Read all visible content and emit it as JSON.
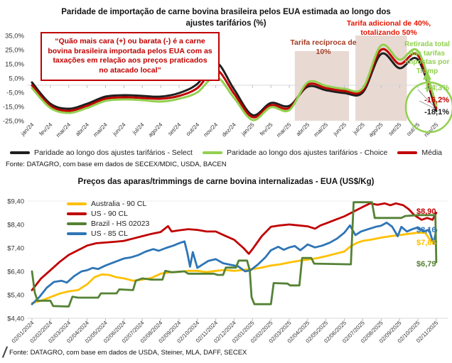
{
  "chart_data": [
    {
      "type": "line",
      "title": "Paridade de importação de carne bovina brasileira pelos EUA estimada ao longo dos ajustes tarifários (%)",
      "categories": [
        "jan/24",
        "fev/24",
        "mar/24",
        "abr/24",
        "mai/24",
        "jun/24",
        "jul/24",
        "ago/24",
        "set/24",
        "out/24",
        "nov/24",
        "dez/24",
        "jan/25",
        "fev/25",
        "mar/25",
        "abr/25",
        "mai/25",
        "jun/25",
        "jul/25",
        "ago/25",
        "set/25",
        "out/25",
        "nov/25"
      ],
      "ylim": [
        -25,
        35
      ],
      "ytick_labels": [
        "35,0%",
        "25,0%",
        "15,0%",
        "5,0%",
        "-5,0%",
        "-15,0%",
        "-25,0%"
      ],
      "grid": "zero-axis-only",
      "smooth": true,
      "legend_position": "bottom",
      "series": [
        {
          "name": "Paridade ao longo dos ajustes tarifários - Select",
          "color": "#1f1f1f",
          "values": [
            2,
            -13,
            -16.5,
            -13,
            -8,
            -7,
            -7.5,
            -8,
            -5.5,
            1,
            16,
            -3,
            -21,
            -12.5,
            -14.5,
            -1,
            -3.5,
            -5.5,
            -5,
            22,
            12,
            18,
            -18.1
          ]
        },
        {
          "name": "Paridade ao longo dos ajustes tarifários - Choice",
          "color": "#92d050",
          "values": [
            -2,
            -16,
            -19.5,
            -16,
            -11,
            -10,
            -10.5,
            -11.5,
            -9.5,
            -5,
            6,
            -9,
            -24.5,
            -15.5,
            -17.5,
            2,
            -0.5,
            -2.5,
            -2,
            28,
            18,
            24,
            -14.3
          ]
        },
        {
          "name": "Média",
          "color": "#c00000",
          "values": [
            0,
            -14.5,
            -18,
            -14.5,
            -9.5,
            -8.5,
            -9,
            -9.5,
            -7.5,
            -2,
            11,
            -6,
            -22.5,
            -14,
            -16,
            0.5,
            -2,
            -4,
            -3.5,
            25,
            15,
            21,
            -16.2
          ]
        }
      ],
      "regions": [
        {
          "label": "Tarifa recíproca de 10%",
          "from": 14.3,
          "to": 17.25,
          "top": 24,
          "color": "#e9d9d3"
        },
        {
          "label": "Tarifa adicional de 40%, totalizando 50%",
          "from": 17.6,
          "to": 20.4,
          "top": 35,
          "color": "#e9d9d3"
        }
      ],
      "annotations": {
        "quote": "“Quão mais cara (+) ou barata (-) é a carne bovina brasileira importada pelos EUA com as taxações em relação aos preços praticados no atacado local”",
        "reciproca": "Tarifa recíproca de 10%",
        "adicional": "Tarifa adicional de 40%, totalizando 50%",
        "retirada": "Retirada total das tarifas impostas por Trump"
      },
      "end_labels": [
        {
          "text": "-14,3%",
          "color": "#92d050"
        },
        {
          "text": "-16,2%",
          "color": "#c00000"
        },
        {
          "text": "-18,1%",
          "color": "#1f1f1f"
        }
      ],
      "source": "Fonte: DATAGRO, com base em dados de SECEX/MDIC, USDA, BACEN"
    },
    {
      "type": "line",
      "title": "Preços das aparas/trimmings de carne bovina internalizadas - EUA (US$/Kg)",
      "categories": [
        "02/01/2024",
        "02/02/2024",
        "02/03/2024",
        "02/04/2024",
        "02/05/2024",
        "02/06/2024",
        "02/07/2024",
        "02/08/2024",
        "02/09/2024",
        "02/10/2024",
        "02/11/2024",
        "02/12/2024",
        "02/01/2025",
        "02/02/2025",
        "02/03/2025",
        "02/04/2025",
        "02/05/2025",
        "02/06/2025",
        "02/07/2025",
        "02/08/2025",
        "02/09/2025",
        "02/10/2025",
        "02/11/2025"
      ],
      "ylim": [
        4.4,
        9.4
      ],
      "ytick_labels": [
        "$9,40",
        "$8,40",
        "$7,40",
        "$6,40",
        "$5,40",
        "$4,40"
      ],
      "grid": "top-gridline",
      "smooth": false,
      "legend_position": "top-left",
      "series": [
        {
          "name": "Australia - 90 CL",
          "color": "#ffc000",
          "points": [
            [
              0,
              5.05
            ],
            [
              0.5,
              5.15
            ],
            [
              1,
              5.3
            ],
            [
              1.5,
              5.45
            ],
            [
              2,
              5.55
            ],
            [
              2.5,
              5.6
            ],
            [
              3,
              5.85
            ],
            [
              3.4,
              6.15
            ],
            [
              3.8,
              6.27
            ],
            [
              4.2,
              6.25
            ],
            [
              4.6,
              6.15
            ],
            [
              5,
              6.1
            ],
            [
              5.5,
              6.0
            ],
            [
              6,
              6.05
            ],
            [
              6.5,
              6.12
            ],
            [
              7,
              6.3
            ],
            [
              7.5,
              6.36
            ],
            [
              8,
              6.38
            ],
            [
              8.5,
              6.42
            ],
            [
              9,
              6.42
            ],
            [
              9.5,
              6.37
            ],
            [
              10,
              6.42
            ],
            [
              10.5,
              6.46
            ],
            [
              11,
              6.42
            ],
            [
              11.5,
              6.46
            ],
            [
              12,
              6.5
            ],
            [
              12.5,
              6.56
            ],
            [
              13,
              6.65
            ],
            [
              13.5,
              6.7
            ],
            [
              14,
              6.78
            ],
            [
              14.5,
              6.85
            ],
            [
              15,
              6.9
            ],
            [
              15.5,
              6.96
            ],
            [
              16,
              7.05
            ],
            [
              16.5,
              7.15
            ],
            [
              17,
              7.25
            ],
            [
              17.3,
              7.45
            ],
            [
              17.7,
              7.62
            ],
            [
              18,
              7.7
            ],
            [
              18.5,
              7.76
            ],
            [
              19,
              7.84
            ],
            [
              19.5,
              7.9
            ],
            [
              20,
              7.95
            ],
            [
              20.5,
              8.0
            ],
            [
              21,
              8.05
            ],
            [
              21.4,
              8.04
            ],
            [
              21.7,
              7.7
            ],
            [
              22,
              7.66
            ]
          ]
        },
        {
          "name": "US - 90 CL",
          "color": "#c00000",
          "points": [
            [
              0,
              5.6
            ],
            [
              0.5,
              6.1
            ],
            [
              1,
              6.45
            ],
            [
              1.5,
              6.8
            ],
            [
              2,
              7.1
            ],
            [
              2.5,
              7.3
            ],
            [
              3,
              7.5
            ],
            [
              3.5,
              7.6
            ],
            [
              4,
              7.63
            ],
            [
              4.5,
              7.66
            ],
            [
              5,
              7.7
            ],
            [
              5.5,
              7.8
            ],
            [
              6,
              7.9
            ],
            [
              6.5,
              8.0
            ],
            [
              7,
              8.08
            ],
            [
              7.4,
              8.33
            ],
            [
              7.6,
              8.1
            ],
            [
              8,
              8.15
            ],
            [
              8.5,
              8.2
            ],
            [
              9,
              8.17
            ],
            [
              9.5,
              8.1
            ],
            [
              10,
              8.1
            ],
            [
              10.5,
              7.92
            ],
            [
              11,
              7.75
            ],
            [
              11.5,
              7.4
            ],
            [
              11.8,
              7.15
            ],
            [
              12,
              7.35
            ],
            [
              12.5,
              7.9
            ],
            [
              13,
              8.3
            ],
            [
              13.5,
              8.36
            ],
            [
              14,
              8.4
            ],
            [
              14.5,
              8.36
            ],
            [
              15,
              8.32
            ],
            [
              15.4,
              8.22
            ],
            [
              15.7,
              8.36
            ],
            [
              16,
              8.45
            ],
            [
              16.5,
              8.6
            ],
            [
              17,
              8.75
            ],
            [
              17.5,
              8.95
            ],
            [
              18,
              9.15
            ],
            [
              18.4,
              9.3
            ],
            [
              18.8,
              9.24
            ],
            [
              19.2,
              9.3
            ],
            [
              19.5,
              9.22
            ],
            [
              19.8,
              9.3
            ],
            [
              20.2,
              9.22
            ],
            [
              20.5,
              9.05
            ],
            [
              20.8,
              8.8
            ],
            [
              21.2,
              8.6
            ],
            [
              21.5,
              8.68
            ],
            [
              21.8,
              8.6
            ],
            [
              22,
              8.9
            ]
          ]
        },
        {
          "name": "Brazil - HS 02023",
          "color": "#548235",
          "points": [
            [
              0,
              6.4
            ],
            [
              0.15,
              5.5
            ],
            [
              0.3,
              5.15
            ],
            [
              1,
              5.15
            ],
            [
              1.15,
              4.92
            ],
            [
              2,
              4.9
            ],
            [
              2.2,
              5.32
            ],
            [
              2.5,
              5.28
            ],
            [
              3.6,
              5.28
            ],
            [
              3.75,
              5.46
            ],
            [
              4.6,
              5.46
            ],
            [
              4.75,
              5.63
            ],
            [
              5.5,
              5.6
            ],
            [
              5.65,
              6.0
            ],
            [
              6,
              6.1
            ],
            [
              6.5,
              6.05
            ],
            [
              7.1,
              6.05
            ],
            [
              7.25,
              6.42
            ],
            [
              7.6,
              6.36
            ],
            [
              8.3,
              6.4
            ],
            [
              8.5,
              6.3
            ],
            [
              9.9,
              6.3
            ],
            [
              10.1,
              6.25
            ],
            [
              10.4,
              6.25
            ],
            [
              10.55,
              6.56
            ],
            [
              11.1,
              6.56
            ],
            [
              11.25,
              6.86
            ],
            [
              11.7,
              6.86
            ],
            [
              11.85,
              6.45
            ],
            [
              11.95,
              5.3
            ],
            [
              12.1,
              5.0
            ],
            [
              13,
              5.0
            ],
            [
              13.15,
              5.9
            ],
            [
              13.9,
              5.88
            ],
            [
              14.05,
              5.8
            ],
            [
              14.55,
              5.8
            ],
            [
              14.7,
              6.97
            ],
            [
              15.2,
              6.97
            ],
            [
              15.35,
              6.73
            ],
            [
              17.35,
              6.7
            ],
            [
              17.5,
              9.35
            ],
            [
              18.5,
              9.35
            ],
            [
              18.65,
              8.68
            ],
            [
              20.1,
              8.68
            ],
            [
              20.3,
              8.76
            ],
            [
              21,
              8.8
            ],
            [
              21.95,
              8.8
            ],
            [
              22,
              6.79
            ]
          ]
        },
        {
          "name": "US - 85 CL",
          "color": "#2e75b6",
          "points": [
            [
              0,
              5.0
            ],
            [
              0.4,
              5.3
            ],
            [
              0.8,
              5.7
            ],
            [
              1.2,
              5.95
            ],
            [
              1.6,
              6.0
            ],
            [
              1.9,
              5.92
            ],
            [
              2.3,
              6.2
            ],
            [
              2.7,
              6.4
            ],
            [
              3,
              6.45
            ],
            [
              3.3,
              6.55
            ],
            [
              3.6,
              6.5
            ],
            [
              4,
              6.65
            ],
            [
              4.5,
              6.8
            ],
            [
              5,
              6.95
            ],
            [
              5.4,
              7.0
            ],
            [
              5.8,
              7.1
            ],
            [
              6.2,
              7.25
            ],
            [
              6.6,
              7.35
            ],
            [
              6.9,
              7.28
            ],
            [
              7.3,
              7.4
            ],
            [
              7.7,
              7.5
            ],
            [
              8,
              7.6
            ],
            [
              8.3,
              7.68
            ],
            [
              8.45,
              7.2
            ],
            [
              8.6,
              6.6
            ],
            [
              8.75,
              7.22
            ],
            [
              9,
              6.55
            ],
            [
              9.3,
              6.7
            ],
            [
              9.6,
              6.85
            ],
            [
              10,
              6.92
            ],
            [
              10.4,
              6.75
            ],
            [
              10.8,
              6.68
            ],
            [
              11.2,
              6.62
            ],
            [
              11.6,
              6.4
            ],
            [
              11.9,
              6.45
            ],
            [
              12.3,
              6.7
            ],
            [
              12.7,
              7.0
            ],
            [
              13,
              7.3
            ],
            [
              13.4,
              7.45
            ],
            [
              13.7,
              7.32
            ],
            [
              14,
              7.42
            ],
            [
              14.3,
              7.48
            ],
            [
              14.6,
              7.3
            ],
            [
              15,
              7.55
            ],
            [
              15.4,
              7.42
            ],
            [
              15.8,
              7.5
            ],
            [
              16.2,
              7.62
            ],
            [
              16.6,
              7.8
            ],
            [
              17,
              8.05
            ],
            [
              17.3,
              8.36
            ],
            [
              17.6,
              7.95
            ],
            [
              17.9,
              8.1
            ],
            [
              18.3,
              8.2
            ],
            [
              18.7,
              8.3
            ],
            [
              19,
              8.35
            ],
            [
              19.3,
              8.48
            ],
            [
              19.6,
              8.3
            ],
            [
              19.9,
              7.9
            ],
            [
              20.1,
              8.3
            ],
            [
              20.4,
              8.1
            ],
            [
              20.7,
              8.2
            ],
            [
              21,
              8.28
            ],
            [
              21.3,
              8.1
            ],
            [
              21.6,
              8.18
            ],
            [
              21.85,
              7.6
            ],
            [
              22,
              8.16
            ]
          ]
        }
      ],
      "end_labels": [
        {
          "text": "$8,90",
          "color": "#c00000"
        },
        {
          "text": "$8,16",
          "color": "#2e75b6"
        },
        {
          "text": "$7,66",
          "color": "#ffc000"
        },
        {
          "text": "$6,79",
          "color": "#548235"
        }
      ],
      "source": "Fonte: DATAGRO, com base em dados de USDA, Steiner, MLA, DAFF, SECEX"
    }
  ]
}
